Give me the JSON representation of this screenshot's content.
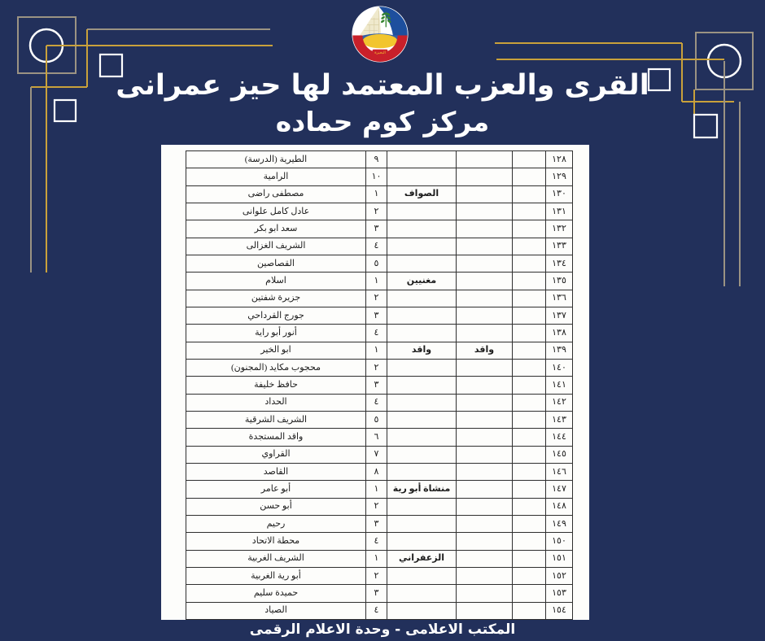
{
  "title": {
    "line1": "القرى والعزب المعتمد لها حيز عمرانى",
    "line2": "مركز كوم حماده"
  },
  "footer": {
    "text": "المكتب الاعلامى - وحدة الاعلام الرقمى"
  },
  "logo": {
    "name": "beheira-governorate-logo",
    "banner_text": "البحيرة"
  },
  "colors": {
    "background_navy": "#22305b",
    "frame_gold": "#c9a13b",
    "frame_tan": "#9b9383",
    "page_white": "#fdfdfb",
    "table_border": "#2f2f2f",
    "logo_blue": "#1d4f9e",
    "logo_red": "#c8202a",
    "logo_green": "#35842e",
    "logo_yellow": "#f2c52d",
    "logo_pale": "#efe9cc"
  },
  "table": {
    "rows": [
      {
        "serial": "١٢٨",
        "mother": "",
        "group": "",
        "num": "٩",
        "name": "الطيرية (الدرسة)"
      },
      {
        "serial": "١٢٩",
        "mother": "",
        "group": "",
        "num": "١٠",
        "name": "الرامية"
      },
      {
        "serial": "١٣٠",
        "mother": "",
        "group": "الصواف",
        "num": "١",
        "name": "مصطفى راضى"
      },
      {
        "serial": "١٣١",
        "mother": "",
        "group": "",
        "num": "٢",
        "name": "عادل كامل علوانى"
      },
      {
        "serial": "١٣٢",
        "mother": "",
        "group": "",
        "num": "٣",
        "name": "سعد ابو بكر"
      },
      {
        "serial": "١٣٣",
        "mother": "",
        "group": "",
        "num": "٤",
        "name": "الشريف الغزالى"
      },
      {
        "serial": "١٣٤",
        "mother": "",
        "group": "",
        "num": "٥",
        "name": "القصاصين"
      },
      {
        "serial": "١٣٥",
        "mother": "",
        "group": "مغنيين",
        "num": "١",
        "name": "اسلام"
      },
      {
        "serial": "١٣٦",
        "mother": "",
        "group": "",
        "num": "٢",
        "name": "جزيرة شفتين"
      },
      {
        "serial": "١٣٧",
        "mother": "",
        "group": "",
        "num": "٣",
        "name": "جورج القرداحي"
      },
      {
        "serial": "١٣٨",
        "mother": "",
        "group": "",
        "num": "٤",
        "name": "أنور أبو راية"
      },
      {
        "serial": "١٣٩",
        "mother": "واقد",
        "group": "واقد",
        "num": "١",
        "name": "ابو الخير"
      },
      {
        "serial": "١٤٠",
        "mother": "",
        "group": "",
        "num": "٢",
        "name": "محجوب مكايد (المجنون)"
      },
      {
        "serial": "١٤١",
        "mother": "",
        "group": "",
        "num": "٣",
        "name": "حافظ خليفة"
      },
      {
        "serial": "١٤٢",
        "mother": "",
        "group": "",
        "num": "٤",
        "name": "الحداد"
      },
      {
        "serial": "١٤٣",
        "mother": "",
        "group": "",
        "num": "٥",
        "name": "الشريف الشرقية"
      },
      {
        "serial": "١٤٤",
        "mother": "",
        "group": "",
        "num": "٦",
        "name": "واقد المستجدة"
      },
      {
        "serial": "١٤٥",
        "mother": "",
        "group": "",
        "num": "٧",
        "name": "القراوي"
      },
      {
        "serial": "١٤٦",
        "mother": "",
        "group": "",
        "num": "٨",
        "name": "القاصد"
      },
      {
        "serial": "١٤٧",
        "mother": "",
        "group": "منشاة أبو رية",
        "num": "١",
        "name": "أبو عامر"
      },
      {
        "serial": "١٤٨",
        "mother": "",
        "group": "",
        "num": "٢",
        "name": "أبو حسن"
      },
      {
        "serial": "١٤٩",
        "mother": "",
        "group": "",
        "num": "٣",
        "name": "رحيم"
      },
      {
        "serial": "١٥٠",
        "mother": "",
        "group": "",
        "num": "٤",
        "name": "محطة الاتحاد"
      },
      {
        "serial": "١٥١",
        "mother": "",
        "group": "الزعفراني",
        "num": "١",
        "name": "الشريف الغربية"
      },
      {
        "serial": "١٥٢",
        "mother": "",
        "group": "",
        "num": "٢",
        "name": "أبو رية الغربية"
      },
      {
        "serial": "١٥٣",
        "mother": "",
        "group": "",
        "num": "٣",
        "name": "حميدة سليم"
      },
      {
        "serial": "١٥٤",
        "mother": "",
        "group": "",
        "num": "٤",
        "name": "الصياد"
      }
    ]
  }
}
